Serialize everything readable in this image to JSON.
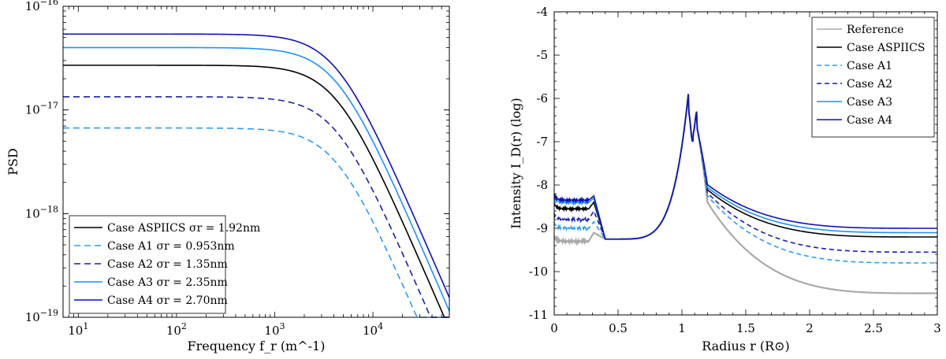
{
  "chart_data": [
    {
      "type": "line",
      "xscale": "log",
      "yscale": "log",
      "xlim": [
        7,
        60000
      ],
      "ylim": [
        1e-19,
        1e-16
      ],
      "xlabel": "Frequency f_r (m^-1)",
      "ylabel": "PSD",
      "xticks": [
        {
          "value": 10,
          "label": "10",
          "exp": "1"
        },
        {
          "value": 100,
          "label": "10",
          "exp": "2"
        },
        {
          "value": 1000,
          "label": "10",
          "exp": "3"
        },
        {
          "value": 10000,
          "label": "10",
          "exp": "4"
        }
      ],
      "yticks": [
        {
          "value": 1e-19,
          "label": "10",
          "exp": "−19"
        },
        {
          "value": 1e-18,
          "label": "10",
          "exp": "−18"
        },
        {
          "value": 1e-17,
          "label": "10",
          "exp": "−17"
        },
        {
          "value": 1e-16,
          "label": "10",
          "exp": "−16"
        }
      ],
      "legend_position": "bottom-left",
      "series": [
        {
          "name": "Case ASPIICS σr = 1.92nm",
          "color": "#000000",
          "dash": false,
          "plateau": 2.7e-17,
          "knee": 4200,
          "slope": -2.2
        },
        {
          "name": "Case A1 σr = 0.953nm",
          "color": "#2a9df4",
          "dash": true,
          "plateau": 6.7e-18,
          "knee": 4200,
          "slope": -2.2
        },
        {
          "name": "Case A2 σr = 1.35nm",
          "color": "#1a1fb0",
          "dash": true,
          "plateau": 1.34e-17,
          "knee": 4200,
          "slope": -2.2
        },
        {
          "name": "Case A3 σr = 2.35nm",
          "color": "#1e90ff",
          "dash": false,
          "plateau": 4e-17,
          "knee": 4200,
          "slope": -2.2
        },
        {
          "name": "Case A4 σr = 2.70nm",
          "color": "#1010b8",
          "dash": false,
          "plateau": 5.4e-17,
          "knee": 4200,
          "slope": -2.2
        }
      ]
    },
    {
      "type": "line",
      "xlim": [
        0,
        3
      ],
      "ylim": [
        -11,
        -4
      ],
      "xlabel": "Radius r (R⊙)",
      "ylabel": "Intensity I_D(r) (log)",
      "xticks": [
        "0",
        "0.5",
        "1",
        "1.5",
        "2",
        "2.5",
        "3"
      ],
      "yticks": [
        "-11",
        "-10",
        "-9",
        "-8",
        "-7",
        "-6",
        "-5",
        "-4"
      ],
      "legend_position": "top-right",
      "series": [
        {
          "name": "Reference",
          "color": "#aaaaaa",
          "dash": false,
          "inner": -9.3,
          "spike": -9.1,
          "dip": -9.25,
          "peak": -5.9,
          "edge": -8.0,
          "end": -10.5
        },
        {
          "name": "Case ASPIICS",
          "color": "#000000",
          "dash": false,
          "inner": -8.55,
          "spike": -8.4,
          "dip": -9.25,
          "peak": -5.9,
          "edge": -7.9,
          "end": -9.2
        },
        {
          "name": "Case A1",
          "color": "#2a9df4",
          "dash": true,
          "inner": -9.0,
          "spike": -8.85,
          "dip": -9.25,
          "peak": -5.9,
          "edge": -7.95,
          "end": -9.8
        },
        {
          "name": "Case A2",
          "color": "#1a1fb0",
          "dash": true,
          "inner": -8.8,
          "spike": -8.6,
          "dip": -9.25,
          "peak": -5.9,
          "edge": -7.92,
          "end": -9.55
        },
        {
          "name": "Case A3",
          "color": "#1e90ff",
          "dash": false,
          "inner": -8.4,
          "spike": -8.3,
          "dip": -9.25,
          "peak": -5.9,
          "edge": -7.85,
          "end": -9.1
        },
        {
          "name": "Case A4",
          "color": "#1010b8",
          "dash": false,
          "inner": -8.35,
          "spike": -8.25,
          "dip": -9.25,
          "peak": -5.9,
          "edge": -7.8,
          "end": -9.0
        }
      ]
    }
  ]
}
